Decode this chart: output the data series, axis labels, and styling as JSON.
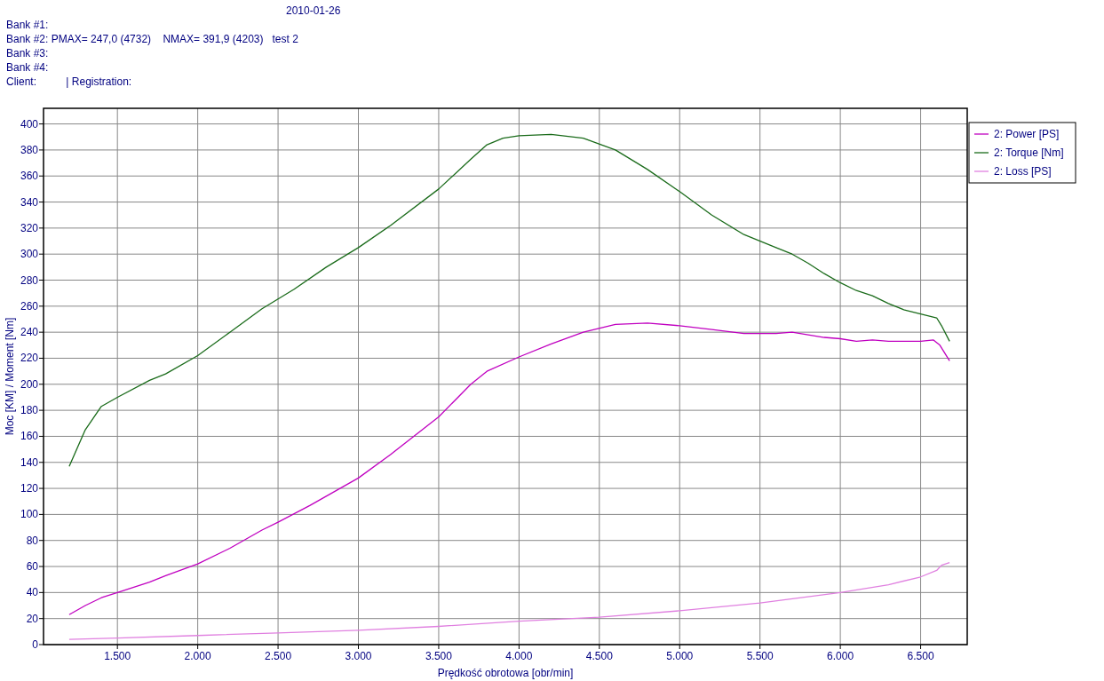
{
  "chart_data": {
    "type": "line",
    "xlabel": "Prędkość obrotowa [obr/min]",
    "ylabel": "Moc [KM] / Moment [Nm]",
    "annotations": [
      "2010-01-26",
      "Bank #1:",
      "Bank #2: PMAX= 247,0 (4732)    NMAX= 391,9 (4203)   test 2",
      "Bank #3:",
      "Bank #4:",
      "Client:          | Registration:"
    ],
    "xlim": [
      1040,
      6790
    ],
    "ylim": [
      0,
      412
    ],
    "xticks": [
      {
        "value": 1500,
        "label": "1.500"
      },
      {
        "value": 2000,
        "label": "2.000"
      },
      {
        "value": 2500,
        "label": "2.500"
      },
      {
        "value": 3000,
        "label": "3.000"
      },
      {
        "value": 3500,
        "label": "3.500"
      },
      {
        "value": 4000,
        "label": "4.000"
      },
      {
        "value": 4500,
        "label": "4.500"
      },
      {
        "value": 5000,
        "label": "5.000"
      },
      {
        "value": 5500,
        "label": "5.500"
      },
      {
        "value": 6000,
        "label": "6.000"
      },
      {
        "value": 6500,
        "label": "6.500"
      }
    ],
    "yticks": [
      0,
      20,
      40,
      60,
      80,
      100,
      120,
      140,
      160,
      180,
      200,
      220,
      240,
      260,
      280,
      300,
      320,
      340,
      360,
      380,
      400
    ],
    "grid": true,
    "legend": "top right",
    "marker": "none",
    "line_style": "solid",
    "series": [
      {
        "name": "2: Power [PS]",
        "color": "#c000c0",
        "x": [
          1200,
          1300,
          1400,
          1500,
          1700,
          1800,
          2000,
          2200,
          2400,
          2500,
          2700,
          3000,
          3200,
          3500,
          3700,
          3800,
          4000,
          4200,
          4400,
          4600,
          4800,
          5000,
          5200,
          5400,
          5600,
          5700,
          5900,
          6000,
          6100,
          6200,
          6300,
          6500,
          6580,
          6620,
          6680
        ],
        "values": [
          23,
          30,
          36,
          40,
          48,
          53,
          62,
          74,
          88,
          94,
          107,
          128,
          146,
          175,
          200,
          210,
          221,
          231,
          240,
          246,
          247,
          245,
          242,
          239,
          239,
          240,
          236,
          235,
          233,
          234,
          233,
          233,
          234,
          230,
          218
        ]
      },
      {
        "name": "2: Torque [Nm]",
        "color": "#1a6b1a",
        "x": [
          1200,
          1300,
          1400,
          1500,
          1700,
          1800,
          2000,
          2200,
          2400,
          2600,
          2800,
          3000,
          3200,
          3500,
          3700,
          3800,
          3900,
          4000,
          4200,
          4400,
          4600,
          4800,
          5000,
          5200,
          5400,
          5600,
          5700,
          5800,
          5900,
          6000,
          6100,
          6200,
          6300,
          6400,
          6500,
          6600,
          6630,
          6680
        ],
        "values": [
          137,
          165,
          183,
          190,
          203,
          208,
          222,
          240,
          258,
          273,
          290,
          305,
          322,
          350,
          373,
          384,
          389,
          391,
          392,
          389,
          380,
          365,
          348,
          330,
          315,
          305,
          300,
          293,
          285,
          278,
          272,
          268,
          262,
          257,
          254,
          251,
          245,
          233
        ]
      },
      {
        "name": "2: Loss [PS]",
        "color": "#e080e0",
        "x": [
          1200,
          1500,
          2000,
          2500,
          3000,
          3500,
          4000,
          4500,
          5000,
          5500,
          6000,
          6300,
          6500,
          6600,
          6630,
          6680
        ],
        "values": [
          4,
          5,
          7,
          9,
          11,
          14,
          18,
          21,
          26,
          32,
          40,
          46,
          52,
          57,
          61,
          63
        ]
      }
    ]
  }
}
